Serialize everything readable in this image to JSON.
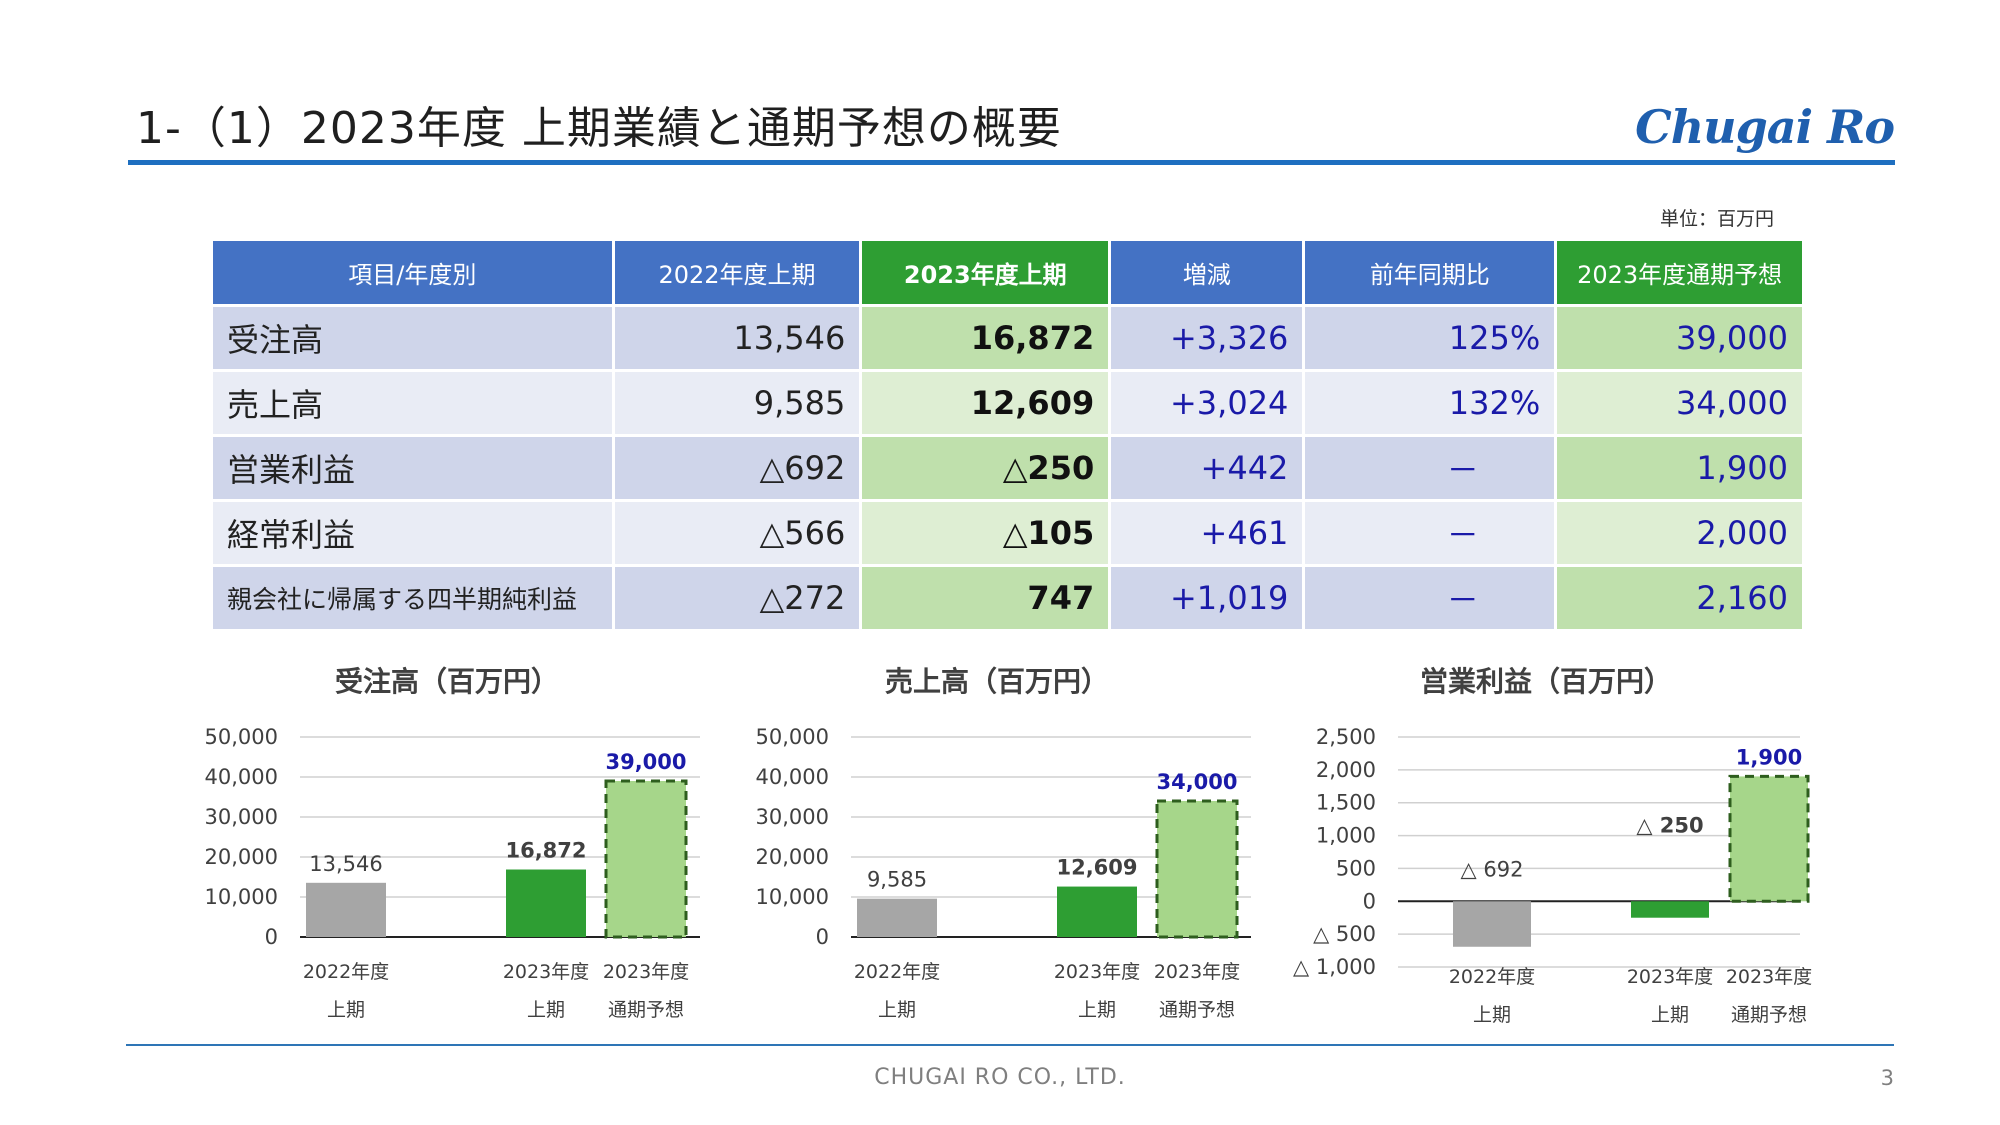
{
  "header": {
    "title": "1-（1）2023年度 上期業績と通期予想の概要",
    "logo": "Chugai Ro"
  },
  "unit_label": "単位：百万円",
  "table": {
    "headers": [
      "項目/年度別",
      "2022年度上期",
      "2023年度上期",
      "増減",
      "前年同期比",
      "2023年度通期予想"
    ],
    "rows": [
      {
        "label": "受注高",
        "prev": "13,546",
        "cur": "16,872",
        "diff": "+3,326",
        "ratio": "125%",
        "forecast": "39,000"
      },
      {
        "label": "売上高",
        "prev": "9,585",
        "cur": "12,609",
        "diff": "+3,024",
        "ratio": "132%",
        "forecast": "34,000"
      },
      {
        "label": "営業利益",
        "prev": "△692",
        "cur": "△250",
        "diff": "+442",
        "ratio": "－",
        "forecast": "1,900"
      },
      {
        "label": "経常利益",
        "prev": "△566",
        "cur": "△105",
        "diff": "+461",
        "ratio": "－",
        "forecast": "2,000"
      },
      {
        "label": "親会社に帰属する四半期純利益",
        "prev": "△272",
        "cur": "747",
        "diff": "+1,019",
        "ratio": "－",
        "forecast": "2,160"
      }
    ]
  },
  "colors": {
    "header_blue": "#4472c4",
    "header_green": "#2e9e33",
    "bar_prev": "#a6a6a6",
    "bar_cur": "#2e9e33",
    "bar_forecast": "#a6d68a",
    "value_blue": "#1a1aa8"
  },
  "chart_data": [
    {
      "type": "bar",
      "title": "受注高（百万円）",
      "categories": [
        [
          "2022年度",
          "上期"
        ],
        [
          "2023年度",
          "上期"
        ],
        [
          "2023年度",
          "通期予想"
        ]
      ],
      "values": [
        13546,
        16872,
        39000
      ],
      "value_labels": [
        "13,546",
        "16,872",
        "39,000"
      ],
      "ylim": [
        0,
        50000
      ],
      "yticks": [
        0,
        10000,
        20000,
        30000,
        40000,
        50000
      ],
      "ytick_labels": [
        "0",
        "10,000",
        "20,000",
        "30,000",
        "40,000",
        "50,000"
      ],
      "grid": true
    },
    {
      "type": "bar",
      "title": "売上高（百万円）",
      "categories": [
        [
          "2022年度",
          "上期"
        ],
        [
          "2023年度",
          "上期"
        ],
        [
          "2023年度",
          "通期予想"
        ]
      ],
      "values": [
        9585,
        12609,
        34000
      ],
      "value_labels": [
        "9,585",
        "12,609",
        "34,000"
      ],
      "ylim": [
        0,
        50000
      ],
      "yticks": [
        0,
        10000,
        20000,
        30000,
        40000,
        50000
      ],
      "ytick_labels": [
        "0",
        "10,000",
        "20,000",
        "30,000",
        "40,000",
        "50,000"
      ],
      "grid": true
    },
    {
      "type": "bar",
      "title": "営業利益（百万円）",
      "categories": [
        [
          "2022年度",
          "上期"
        ],
        [
          "2023年度",
          "上期"
        ],
        [
          "2023年度",
          "通期予想"
        ]
      ],
      "values": [
        -692,
        -250,
        1900
      ],
      "value_labels": [
        "△ 692",
        "△ 250",
        "1,900"
      ],
      "ylim": [
        -1000,
        2500
      ],
      "yticks": [
        -1000,
        -500,
        0,
        500,
        1000,
        1500,
        2000,
        2500
      ],
      "ytick_labels": [
        "△ 1,000",
        "△ 500",
        "0",
        "500",
        "1,000",
        "1,500",
        "2,000",
        "2,500"
      ],
      "grid": true
    }
  ],
  "footer": {
    "company": "CHUGAI RO CO., LTD.",
    "page": "3"
  }
}
